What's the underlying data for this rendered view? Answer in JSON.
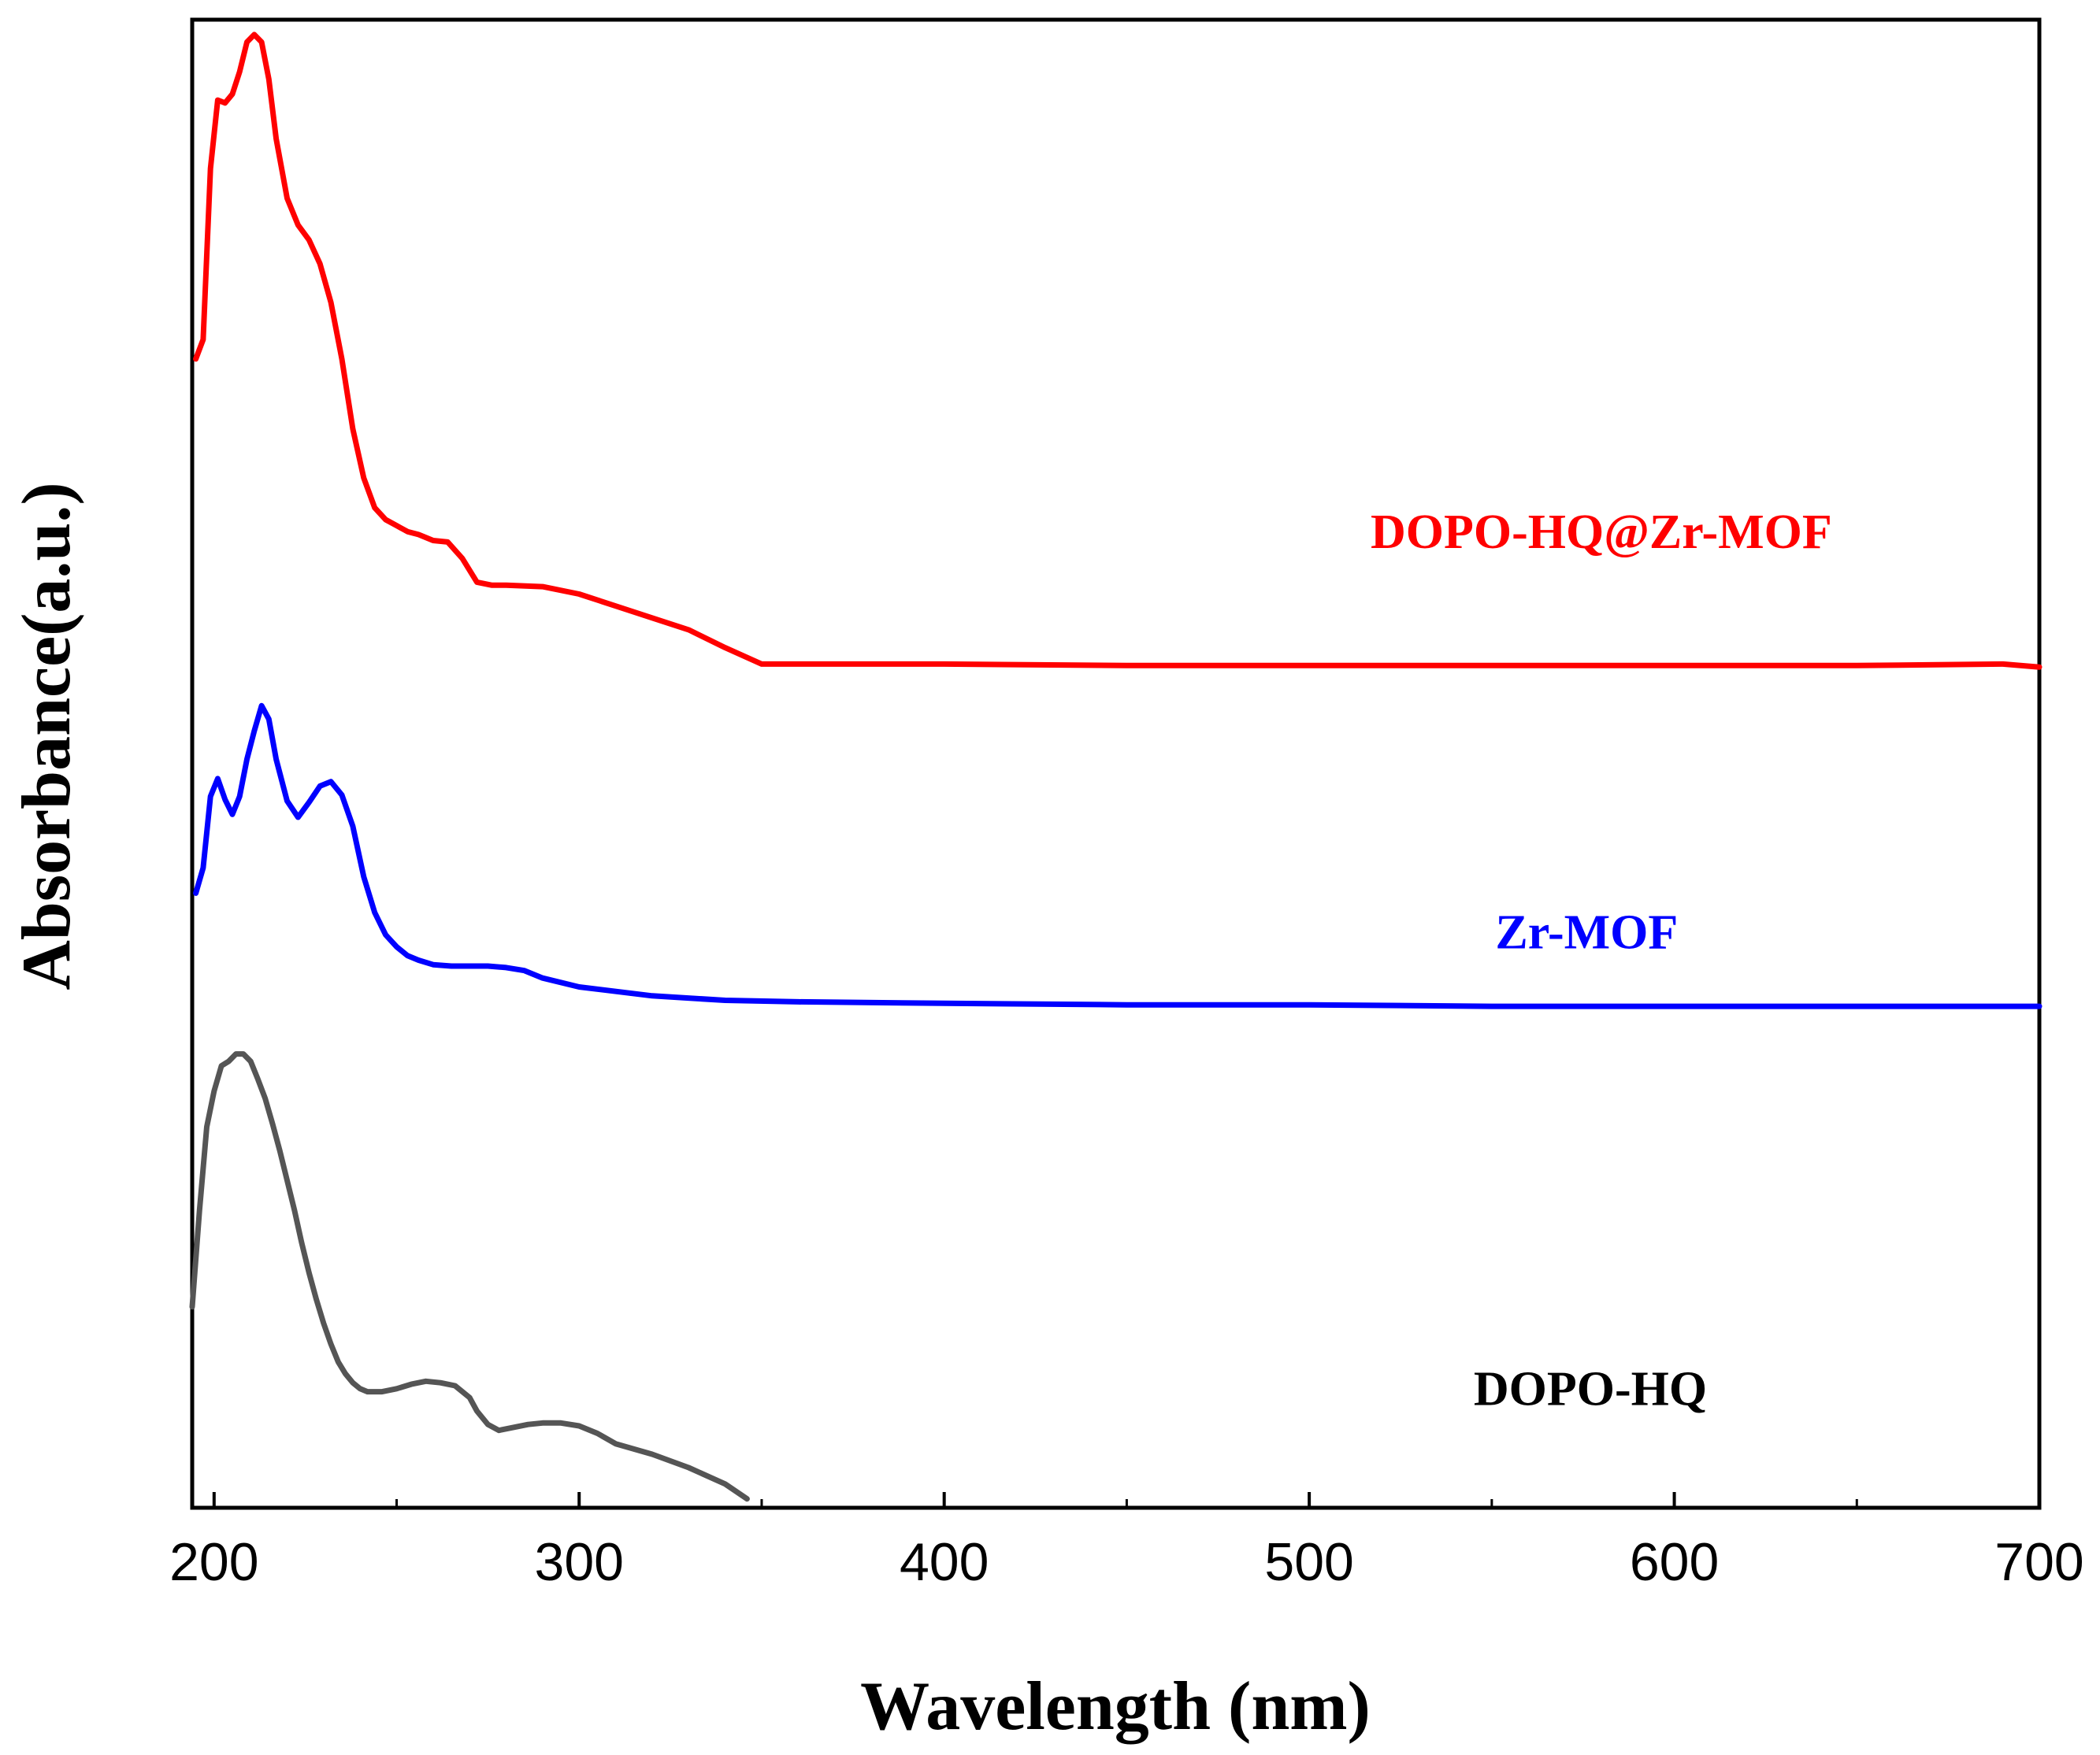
{
  "chart_data": {
    "type": "line",
    "title": "",
    "xlabel": "Wavelength (nm)",
    "ylabel": "Absorbance(a.u.)",
    "xlim": [
      194,
      700
    ],
    "ylim": [
      0,
      1
    ],
    "y_ticks_shown": false,
    "x_ticks": [
      200,
      300,
      400,
      500,
      600,
      700
    ],
    "x_tick_labels": [
      "200",
      "300",
      "400",
      "500",
      "600",
      "700"
    ],
    "x_minor_ticks": [
      250,
      350,
      450,
      550,
      650
    ],
    "grid": false,
    "legend": "none (series labeled inline at right)",
    "series": [
      {
        "name": "DOPO-HQ@Zr-MOF",
        "color": "#ff0000",
        "label_at": [
          580,
          0.645
        ],
        "x": [
          195,
          197,
          199,
          201,
          203,
          205,
          207,
          209,
          211,
          213,
          215,
          217,
          220,
          223,
          226,
          229,
          232,
          235,
          238,
          241,
          244,
          247,
          250,
          253,
          256,
          260,
          264,
          268,
          272,
          276,
          280,
          290,
          300,
          305,
          310,
          320,
          330,
          340,
          350,
          400,
          450,
          500,
          550,
          600,
          650,
          690,
          700
        ],
        "y": [
          0.772,
          0.785,
          0.9,
          0.946,
          0.944,
          0.95,
          0.965,
          0.985,
          0.99,
          0.985,
          0.96,
          0.92,
          0.88,
          0.862,
          0.852,
          0.836,
          0.81,
          0.772,
          0.725,
          0.692,
          0.672,
          0.664,
          0.66,
          0.656,
          0.654,
          0.65,
          0.649,
          0.638,
          0.622,
          0.62,
          0.62,
          0.619,
          0.614,
          0.61,
          0.606,
          0.598,
          0.59,
          0.578,
          0.567,
          0.567,
          0.566,
          0.566,
          0.566,
          0.566,
          0.566,
          0.567,
          0.565
        ]
      },
      {
        "name": "Zr-MOF",
        "color": "#0000ff",
        "label_at": [
          576,
          0.376
        ],
        "x": [
          195,
          197,
          199,
          201,
          203,
          205,
          207,
          209,
          211,
          213,
          215,
          217,
          220,
          223,
          226,
          229,
          232,
          235,
          238,
          241,
          244,
          247,
          250,
          253,
          256,
          260,
          265,
          270,
          275,
          280,
          285,
          290,
          300,
          320,
          340,
          360,
          400,
          450,
          500,
          550,
          600,
          650,
          700
        ],
        "y": [
          0.413,
          0.43,
          0.478,
          0.49,
          0.476,
          0.466,
          0.478,
          0.503,
          0.522,
          0.539,
          0.53,
          0.503,
          0.475,
          0.464,
          0.474,
          0.485,
          0.488,
          0.479,
          0.458,
          0.424,
          0.4,
          0.385,
          0.377,
          0.371,
          0.368,
          0.365,
          0.364,
          0.364,
          0.364,
          0.363,
          0.361,
          0.356,
          0.35,
          0.344,
          0.341,
          0.34,
          0.339,
          0.338,
          0.338,
          0.337,
          0.337,
          0.337,
          0.337
        ]
      },
      {
        "name": "DOPO-HQ",
        "color": "#555555",
        "label_at": [
          577,
          0.069
        ],
        "x": [
          194,
          196,
          198,
          200,
          202,
          204,
          206,
          208,
          210,
          212,
          214,
          216,
          218,
          220,
          222,
          224,
          226,
          228,
          230,
          232,
          234,
          236,
          238,
          240,
          242,
          244,
          246,
          248,
          250,
          254,
          258,
          262,
          266,
          270,
          272,
          275,
          278,
          282,
          286,
          290,
          295,
          300,
          305,
          310,
          320,
          330,
          340,
          346
        ],
        "y": [
          0.135,
          0.2,
          0.256,
          0.28,
          0.297,
          0.3,
          0.305,
          0.305,
          0.3,
          0.288,
          0.275,
          0.258,
          0.24,
          0.22,
          0.2,
          0.178,
          0.158,
          0.14,
          0.124,
          0.11,
          0.098,
          0.09,
          0.084,
          0.08,
          0.078,
          0.078,
          0.078,
          0.079,
          0.08,
          0.083,
          0.085,
          0.084,
          0.082,
          0.074,
          0.065,
          0.056,
          0.052,
          0.054,
          0.056,
          0.057,
          0.057,
          0.055,
          0.05,
          0.043,
          0.036,
          0.027,
          0.016,
          0.006
        ]
      }
    ]
  }
}
